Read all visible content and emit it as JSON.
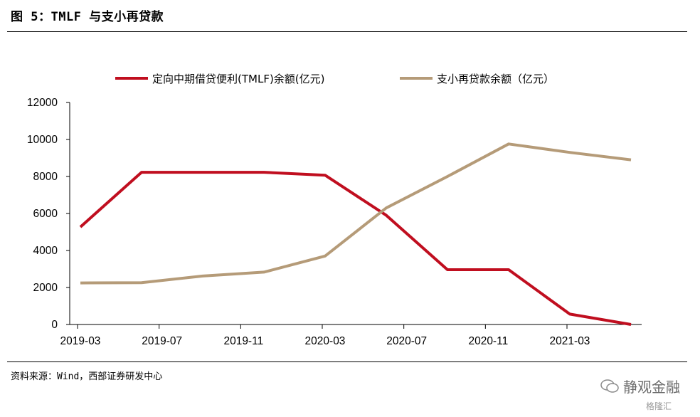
{
  "header": {
    "title": "图 5：TMLF 与支小再贷款"
  },
  "footer": {
    "source": "资料来源：Wind，西部证券研发中心"
  },
  "watermark": {
    "text": "静观金融",
    "logo_text": "格隆汇"
  },
  "chart_data": {
    "type": "line",
    "title": "",
    "xlabel": "",
    "ylabel": "",
    "x_tick_labels": [
      "2019-03",
      "2019-07",
      "2019-11",
      "2020-03",
      "2020-07",
      "2020-11",
      "2021-03"
    ],
    "y_tick_labels": [
      "0",
      "2000",
      "4000",
      "6000",
      "8000",
      "10000",
      "12000"
    ],
    "ylim": [
      0,
      12000
    ],
    "x_range": [
      "2019-03",
      "2021-06"
    ],
    "grid": false,
    "legend_position": "top",
    "series": [
      {
        "name": "定向中期借贷便利(TMLF)余额(亿元)",
        "color": "#c00e1f",
        "points": [
          {
            "x": "2019-03",
            "y": 5270
          },
          {
            "x": "2019-06",
            "y": 8226
          },
          {
            "x": "2019-12",
            "y": 8226
          },
          {
            "x": "2020-03",
            "y": 8069
          },
          {
            "x": "2020-06",
            "y": 5900
          },
          {
            "x": "2020-09",
            "y": 2960
          },
          {
            "x": "2020-12",
            "y": 2960
          },
          {
            "x": "2021-03",
            "y": 560
          },
          {
            "x": "2021-06",
            "y": 0
          }
        ]
      },
      {
        "name": "支小再贷款余额（亿元）",
        "color": "#b59b78",
        "points": [
          {
            "x": "2019-03",
            "y": 2245
          },
          {
            "x": "2019-06",
            "y": 2260
          },
          {
            "x": "2019-09",
            "y": 2620
          },
          {
            "x": "2019-12",
            "y": 2830
          },
          {
            "x": "2020-03",
            "y": 3700
          },
          {
            "x": "2020-06",
            "y": 6300
          },
          {
            "x": "2020-09",
            "y": 8000
          },
          {
            "x": "2020-12",
            "y": 9756
          },
          {
            "x": "2021-03",
            "y": 9300
          },
          {
            "x": "2021-06",
            "y": 8900
          }
        ]
      }
    ]
  }
}
